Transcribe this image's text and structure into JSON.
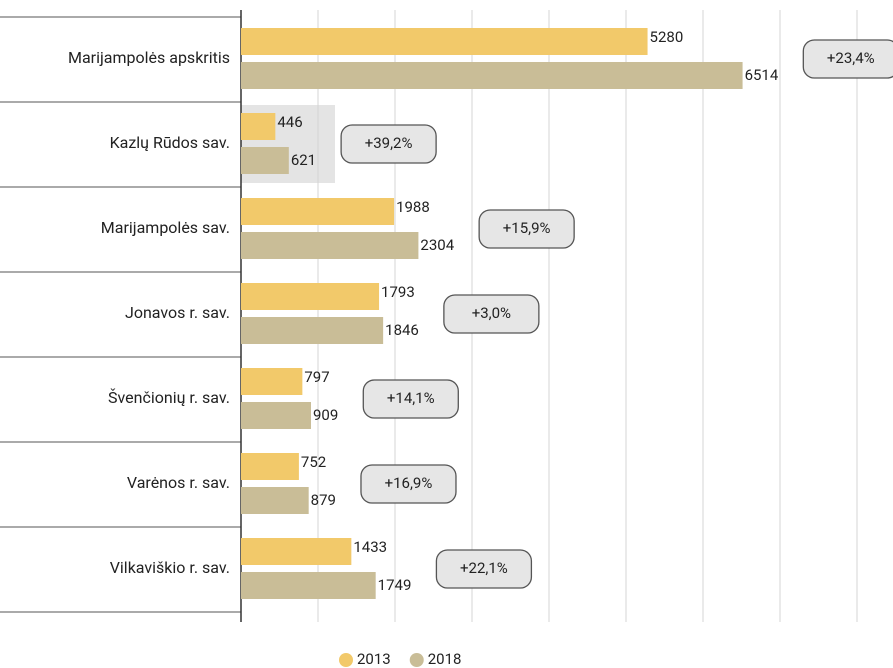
{
  "chart_data": {
    "type": "bar",
    "orientation": "horizontal",
    "categories": [
      "Marijampolės apskritis",
      "Kazlų Rūdos sav.",
      "Marijampolės sav.",
      "Jonavos r. sav.",
      "Švenčionių r. sav.",
      "Varėnos r. sav.",
      "Vilkaviškio r. sav."
    ],
    "series": [
      {
        "name": "2013",
        "color": "#f2c96a",
        "values": [
          5280,
          446,
          1988,
          1793,
          797,
          752,
          1433
        ]
      },
      {
        "name": "2018",
        "color": "#c9bd97",
        "values": [
          6514,
          621,
          2304,
          1846,
          909,
          879,
          1749
        ]
      }
    ],
    "annotations": [
      "+23,4%",
      "+39,2%",
      "+15,9%",
      "+3,0%",
      "+14,1%",
      "+16,9%",
      "+22,1%"
    ],
    "xlim": [
      0,
      8000
    ],
    "xticks": [
      0,
      1000,
      2000,
      3000,
      4000,
      5000,
      6000,
      7000,
      8000
    ],
    "grid": true,
    "legend": "bottom"
  }
}
